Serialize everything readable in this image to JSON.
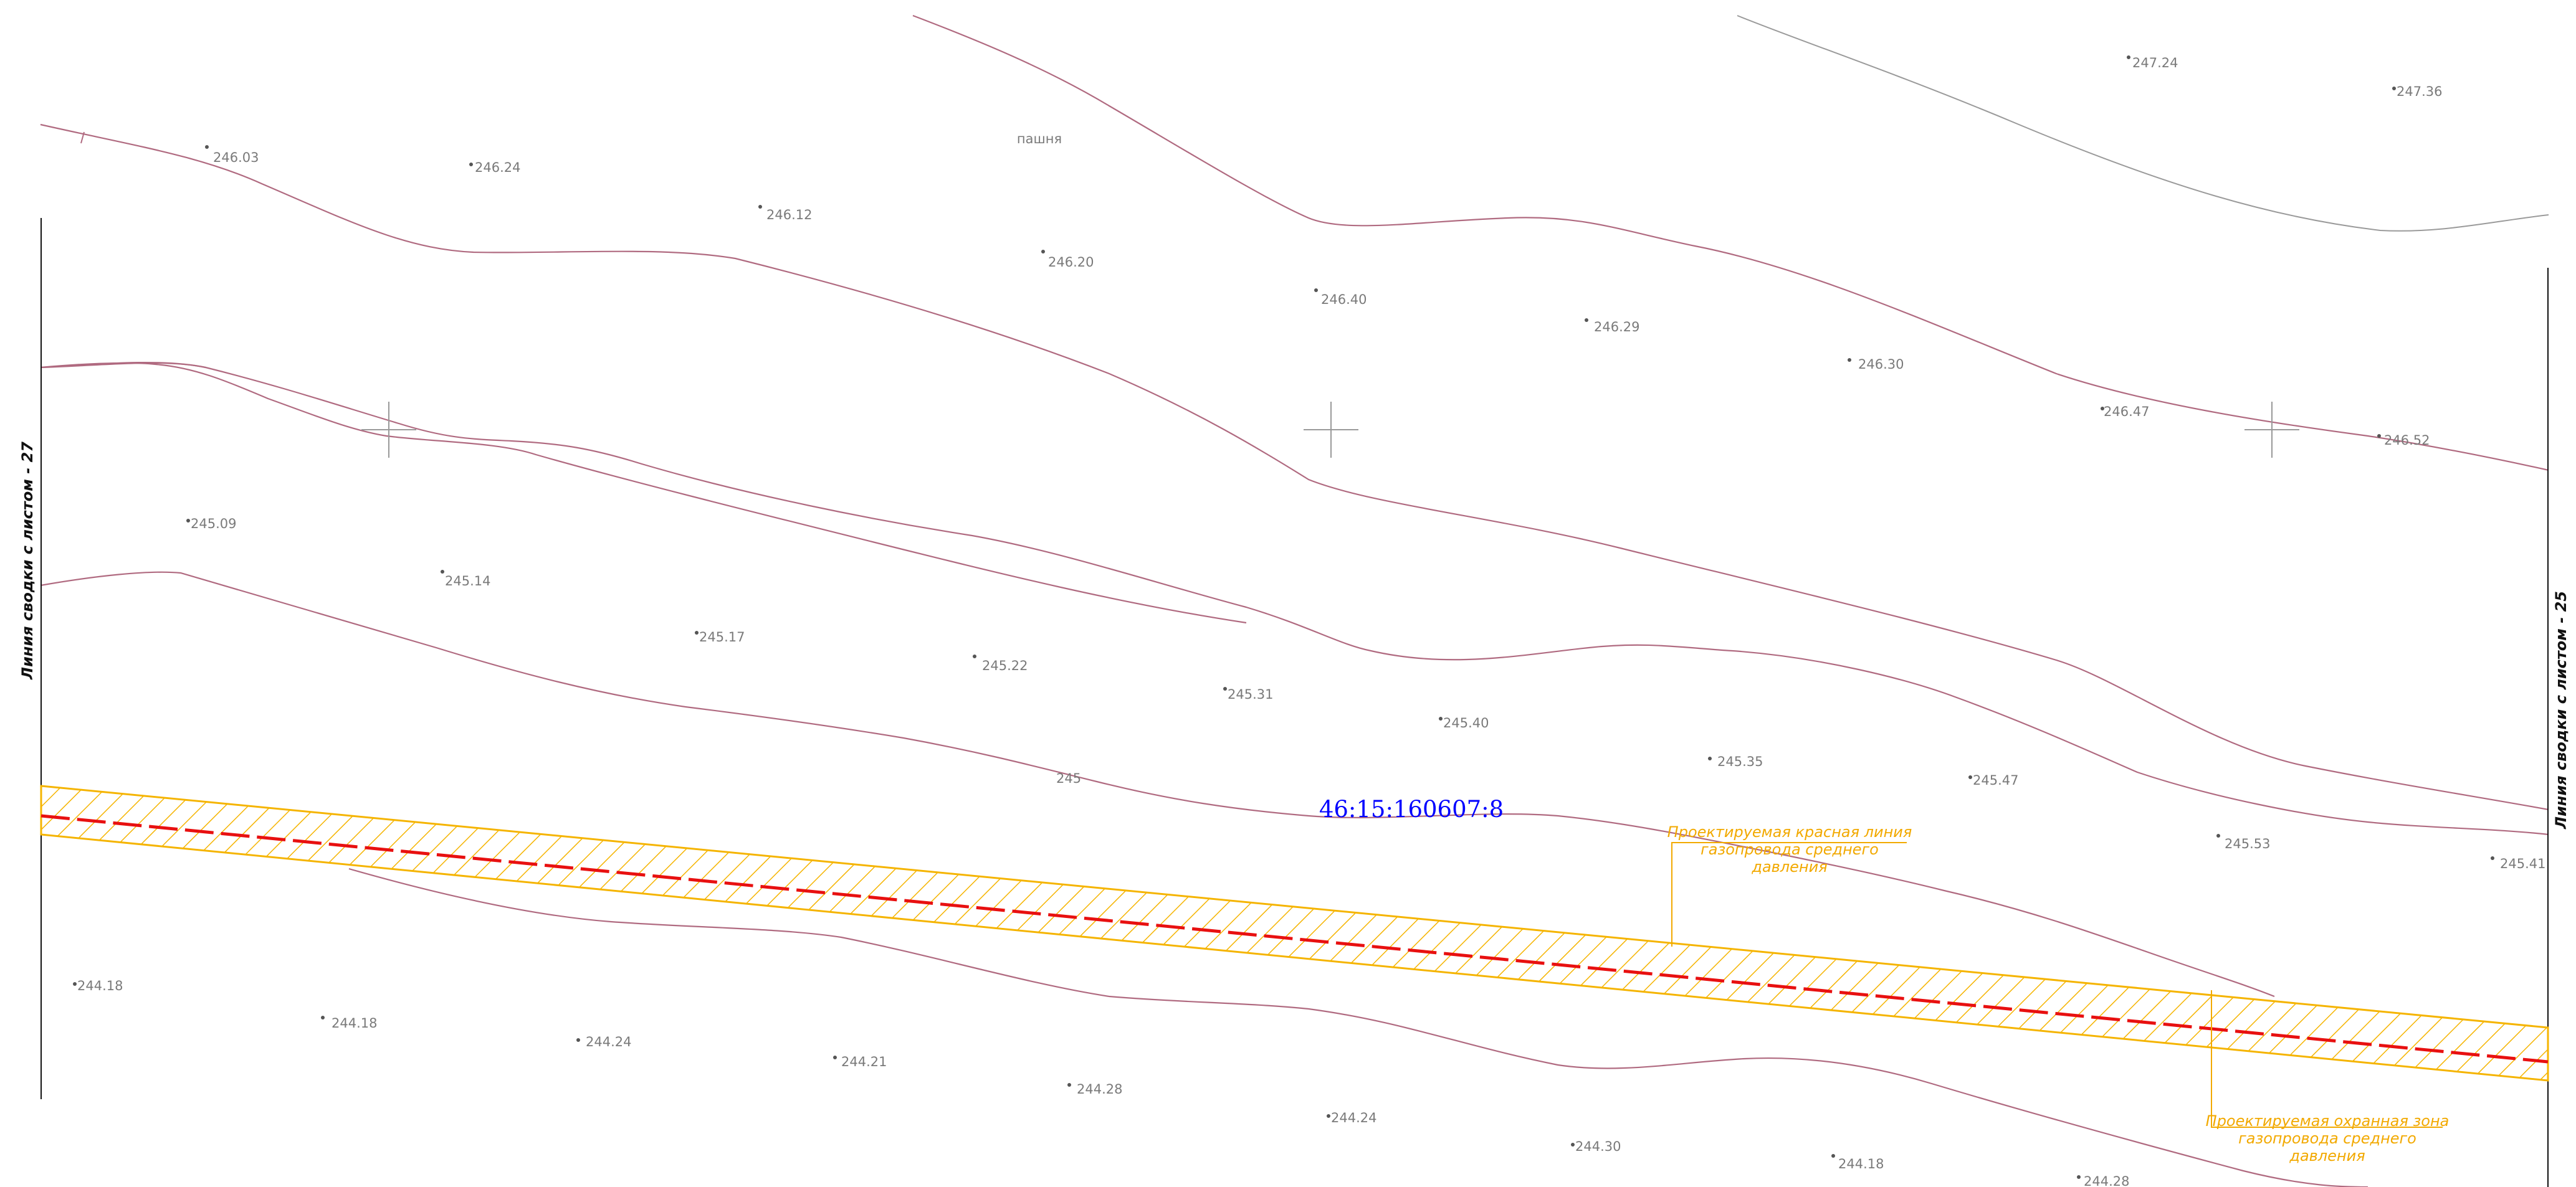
{
  "map": {
    "landuse_label": "пашня",
    "cadastral_number": "46:15:160607:8",
    "match_line_left": "Линия сводки с листом - 27",
    "match_line_right": "Линия сводки с листом - 25",
    "contour_label": "245",
    "annotations": {
      "red_line": [
        "Проектируемая красная линия",
        "газопровода среднего",
        "давления"
      ],
      "protection_zone": [
        "Проектируемая охранная зона",
        "газопровода среднего",
        "давления"
      ]
    },
    "elevations": [
      "246.03",
      "246.24",
      "246.12",
      "246.20",
      "246.40",
      "246.29",
      "246.30",
      "246.47",
      "246.52",
      "247.24",
      "247.36",
      "245.09",
      "245.14",
      "245.17",
      "245.22",
      "245.31",
      "245.40",
      "245.35",
      "245.47",
      "245.53",
      "245.41",
      "244.18",
      "244.18",
      "244.24",
      "244.21",
      "244.28",
      "244.24",
      "244.30",
      "244.18",
      "244.28"
    ],
    "colors": {
      "contour": "#b06a80",
      "gray_line": "#9a9a9a",
      "hatch": "#f5b400",
      "red_line": "#e81010",
      "cadastral": "#0000ff",
      "annotation": "#f2a900"
    }
  }
}
